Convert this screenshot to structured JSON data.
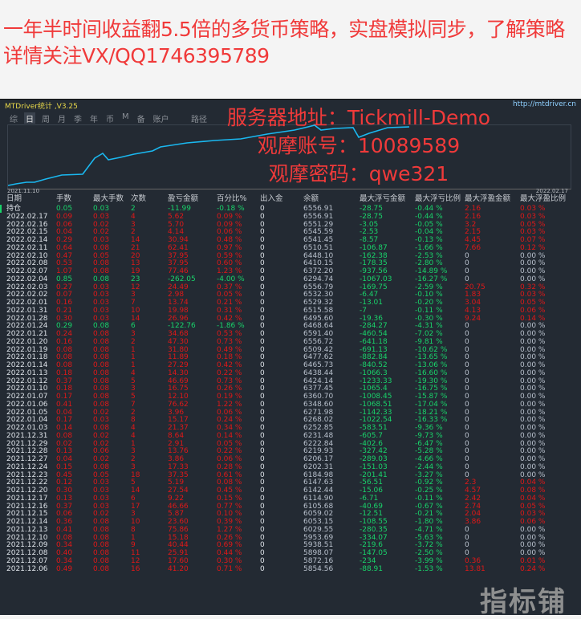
{
  "promo_text": "一年半时间收益翻5.5倍的多货币策略，实盘模拟同步，了解策略详情关注VX/QQ1746395789",
  "app": {
    "title": "MTDriver统计 ,V3.25",
    "url": "http://mtdriver.cn",
    "toolbar": [
      "综",
      "日",
      "周",
      "月",
      "季",
      "年",
      "币",
      "M",
      "备",
      "账户"
    ],
    "active_tab": "日",
    "path_label": "路径",
    "chart_start_date": "2021.11.10",
    "chart_end_date": "2022.02.17",
    "curve_color": "#1ab8f0"
  },
  "overlay": {
    "server": "服务器地址：Tickmill-Demo",
    "account": "观摩账号：10089589",
    "password": "观摩密码：qwe321"
  },
  "table": {
    "headers": [
      "日期",
      "手数",
      "最大手数",
      "次数",
      "盈亏金额",
      "百分比%",
      "出入金",
      "余额",
      "最大浮亏金额",
      "最大浮亏比例",
      "最大浮盈金额",
      "最大浮盈比例"
    ],
    "rows": [
      [
        "持仓",
        "0.05",
        "0.03",
        "2",
        "-11.99",
        "-0.18 %",
        "0",
        "6556.91",
        "-28.75",
        "-0.44 %",
        "2.16",
        "0.03 %"
      ],
      [
        "2022.02.17",
        "0.09",
        "0.03",
        "4",
        "5.62",
        "0.09 %",
        "0",
        "6556.91",
        "-28.75",
        "-0.44 %",
        "2.16",
        "0.03 %"
      ],
      [
        "2022.02.16",
        "0.06",
        "0.02",
        "3",
        "5.70",
        "0.09 %",
        "0",
        "6551.29",
        "-3.05",
        "-0.05 %",
        "3.2",
        "0.05 %"
      ],
      [
        "2022.02.15",
        "0.04",
        "0.02",
        "2",
        "4.14",
        "0.06 %",
        "0",
        "6545.59",
        "-2.53",
        "-0.04 %",
        "2.15",
        "0.03 %"
      ],
      [
        "2022.02.14",
        "0.29",
        "0.03",
        "14",
        "30.94",
        "0.48 %",
        "0",
        "6541.45",
        "-8.57",
        "-0.13 %",
        "4.45",
        "0.07 %"
      ],
      [
        "2022.02.11",
        "0.64",
        "0.08",
        "21",
        "62.41",
        "0.97 %",
        "0",
        "6510.51",
        "-106.87",
        "-1.66 %",
        "7.66",
        "0.12 %"
      ],
      [
        "2022.02.10",
        "0.47",
        "0.05",
        "20",
        "37.95",
        "0.59 %",
        "0",
        "6448.10",
        "-162.38",
        "-2.53 %",
        "0",
        "0.00 %"
      ],
      [
        "2022.02.08",
        "0.53",
        "0.08",
        "13",
        "37.95",
        "0.60 %",
        "0",
        "6410.15",
        "-178.35",
        "-2.80 %",
        "0",
        "0.00 %"
      ],
      [
        "2022.02.07",
        "1.07",
        "0.08",
        "19",
        "77.46",
        "1.23 %",
        "0",
        "6372.20",
        "-937.56",
        "-14.89 %",
        "0",
        "0.00 %"
      ],
      [
        "2022.02.04",
        "0.85",
        "0.08",
        "23",
        "-262.05",
        "-4.00 %",
        "0",
        "6294.74",
        "-1067.03",
        "-16.27 %",
        "0",
        "0.00 %"
      ],
      [
        "2022.02.03",
        "0.27",
        "0.03",
        "12",
        "24.49",
        "0.37 %",
        "0",
        "6556.79",
        "-169.75",
        "-2.59 %",
        "20.75",
        "0.32 %"
      ],
      [
        "2022.02.02",
        "0.07",
        "0.03",
        "3",
        "2.98",
        "0.05 %",
        "0",
        "6532.30",
        "-6.47",
        "-0.10 %",
        "1.83",
        "0.03 %"
      ],
      [
        "2022.02.01",
        "0.16",
        "0.03",
        "7",
        "13.74",
        "0.21 %",
        "0",
        "6529.32",
        "-13.01",
        "-0.20 %",
        "3.04",
        "0.05 %"
      ],
      [
        "2022.01.31",
        "0.21",
        "0.03",
        "10",
        "19.98",
        "0.31 %",
        "0",
        "6515.58",
        "-7",
        "-0.11 %",
        "4.13",
        "0.06 %"
      ],
      [
        "2022.01.28",
        "0.30",
        "0.03",
        "14",
        "26.96",
        "0.42 %",
        "0",
        "6495.60",
        "-19.36",
        "-0.30 %",
        "9.24",
        "0.14 %"
      ],
      [
        "2022.01.24",
        "0.29",
        "0.08",
        "6",
        "-122.76",
        "-1.86 %",
        "0",
        "6468.64",
        "-284.27",
        "-4.31 %",
        "0",
        "0.00 %"
      ],
      [
        "2022.01.21",
        "0.24",
        "0.08",
        "3",
        "34.68",
        "0.53 %",
        "0",
        "6591.40",
        "-460.54",
        "-7.02 %",
        "0",
        "0.00 %"
      ],
      [
        "2022.01.20",
        "0.16",
        "0.08",
        "2",
        "47.30",
        "0.73 %",
        "0",
        "6556.72",
        "-641.18",
        "-9.81 %",
        "0",
        "0.00 %"
      ],
      [
        "2022.01.19",
        "0.08",
        "0.08",
        "1",
        "31.80",
        "0.49 %",
        "0",
        "6509.42",
        "-691.13",
        "-10.62 %",
        "0",
        "0.00 %"
      ],
      [
        "2022.01.18",
        "0.08",
        "0.08",
        "1",
        "11.89",
        "0.18 %",
        "0",
        "6477.62",
        "-882.84",
        "-13.65 %",
        "0",
        "0.00 %"
      ],
      [
        "2022.01.14",
        "0.08",
        "0.08",
        "1",
        "27.29",
        "0.42 %",
        "0",
        "6465.73",
        "-840.52",
        "-13.06 %",
        "0",
        "0.00 %"
      ],
      [
        "2022.01.13",
        "0.18",
        "0.08",
        "4",
        "14.30",
        "0.22 %",
        "0",
        "6438.44",
        "-1066.3",
        "-16.60 %",
        "0",
        "0.00 %"
      ],
      [
        "2022.01.12",
        "0.37",
        "0.08",
        "5",
        "46.69",
        "0.73 %",
        "0",
        "6424.14",
        "-1233.33",
        "-19.30 %",
        "0",
        "0.00 %"
      ],
      [
        "2022.01.10",
        "0.18",
        "0.08",
        "3",
        "16.75",
        "0.26 %",
        "0",
        "6377.45",
        "-1065.4",
        "-16.75 %",
        "0",
        "0.00 %"
      ],
      [
        "2022.01.07",
        "0.17",
        "0.08",
        "5",
        "12.10",
        "0.19 %",
        "0",
        "6360.70",
        "-1008.45",
        "-15.87 %",
        "0",
        "0.00 %"
      ],
      [
        "2022.01.06",
        "0.41",
        "0.08",
        "7",
        "76.62",
        "1.22 %",
        "0",
        "6348.60",
        "-1068.51",
        "-17.04 %",
        "0",
        "0.00 %"
      ],
      [
        "2022.01.05",
        "0.04",
        "0.02",
        "2",
        "3.96",
        "0.06 %",
        "0",
        "6271.98",
        "-1142.33",
        "-18.21 %",
        "0",
        "0.00 %"
      ],
      [
        "2022.01.04",
        "0.17",
        "0.03",
        "8",
        "15.17",
        "0.24 %",
        "0",
        "6268.02",
        "-1022.54",
        "-16.33 %",
        "0",
        "0.00 %"
      ],
      [
        "2022.01.03",
        "0.14",
        "0.08",
        "4",
        "21.37",
        "0.34 %",
        "0",
        "6252.85",
        "-583.51",
        "-9.36 %",
        "0",
        "0.00 %"
      ],
      [
        "2021.12.31",
        "0.08",
        "0.02",
        "4",
        "8.64",
        "0.14 %",
        "0",
        "6231.48",
        "-605.7",
        "-9.73 %",
        "0",
        "0.00 %"
      ],
      [
        "2021.12.29",
        "0.02",
        "0.02",
        "1",
        "2.91",
        "0.05 %",
        "0",
        "6222.84",
        "-402.6",
        "-6.47 %",
        "0",
        "0.00 %"
      ],
      [
        "2021.12.28",
        "0.13",
        "0.06",
        "3",
        "13.76",
        "0.22 %",
        "0",
        "6219.93",
        "-327.42",
        "-5.28 %",
        "0",
        "0.00 %"
      ],
      [
        "2021.12.27",
        "0.04",
        "0.02",
        "2",
        "3.86",
        "0.06 %",
        "0",
        "6206.17",
        "-289.03",
        "-4.66 %",
        "0",
        "0.00 %"
      ],
      [
        "2021.12.24",
        "0.15",
        "0.08",
        "3",
        "17.33",
        "0.28 %",
        "0",
        "6202.31",
        "-151.03",
        "-2.44 %",
        "0",
        "0.00 %"
      ],
      [
        "2021.12.23",
        "0.45",
        "0.05",
        "18",
        "37.35",
        "0.61 %",
        "0",
        "6184.98",
        "-201.41",
        "-3.27 %",
        "0",
        "0.00 %"
      ],
      [
        "2021.12.22",
        "0.12",
        "0.03",
        "5",
        "5.19",
        "0.08 %",
        "0",
        "6147.63",
        "-56.51",
        "-0.92 %",
        "2.3",
        "0.04 %"
      ],
      [
        "2021.12.20",
        "0.30",
        "0.03",
        "14",
        "27.54",
        "0.45 %",
        "0",
        "6142.44",
        "-15.06",
        "-0.25 %",
        "4.57",
        "0.08 %"
      ],
      [
        "2021.12.17",
        "0.13",
        "0.03",
        "6",
        "9.22",
        "0.15 %",
        "0",
        "6114.90",
        "-6.71",
        "-0.11 %",
        "2.42",
        "0.04 %"
      ],
      [
        "2021.12.16",
        "0.37",
        "0.03",
        "17",
        "46.66",
        "0.77 %",
        "0",
        "6105.68",
        "-40.69",
        "-0.67 %",
        "2.74",
        "0.05 %"
      ],
      [
        "2021.12.15",
        "0.06",
        "0.02",
        "3",
        "5.87",
        "0.10 %",
        "0",
        "6059.02",
        "-12.51",
        "-0.21 %",
        "2.04",
        "0.03 %"
      ],
      [
        "2021.12.14",
        "0.36",
        "0.08",
        "10",
        "23.60",
        "0.39 %",
        "0",
        "6053.15",
        "-108.55",
        "-1.80 %",
        "3.86",
        "0.06 %"
      ],
      [
        "2021.12.13",
        "0.41",
        "0.08",
        "8",
        "75.86",
        "1.27 %",
        "0",
        "6029.55",
        "-280.35",
        "-4.71 %",
        "0",
        "0.00 %"
      ],
      [
        "2021.12.10",
        "0.08",
        "0.08",
        "1",
        "15.18",
        "0.26 %",
        "0",
        "5953.69",
        "-334.07",
        "-5.63 %",
        "0",
        "0.00 %"
      ],
      [
        "2021.12.09",
        "0.34",
        "0.08",
        "9",
        "40.44",
        "0.69 %",
        "0",
        "5938.51",
        "-219.6",
        "-3.72 %",
        "0",
        "0.00 %"
      ],
      [
        "2021.12.08",
        "0.40",
        "0.08",
        "11",
        "25.91",
        "0.44 %",
        "0",
        "5898.07",
        "-147.05",
        "-2.50 %",
        "0",
        "0.00 %"
      ],
      [
        "2021.12.07",
        "0.34",
        "0.08",
        "12",
        "17.60",
        "0.30 %",
        "0",
        "5872.16",
        "-234",
        "-3.99 %",
        "0.36",
        "0.01 %"
      ],
      [
        "2021.12.06",
        "0.49",
        "0.08",
        "16",
        "41.20",
        "0.71 %",
        "0",
        "5854.56",
        "-88.91",
        "-1.53 %",
        "13.81",
        "0.24 %"
      ]
    ]
  },
  "watermark": "指标铺",
  "colors": {
    "profit": "#e01818",
    "loss": "#19d36a",
    "neutral": "#b8c0cc",
    "background": "#232a33",
    "promo": "#f03a3a"
  }
}
